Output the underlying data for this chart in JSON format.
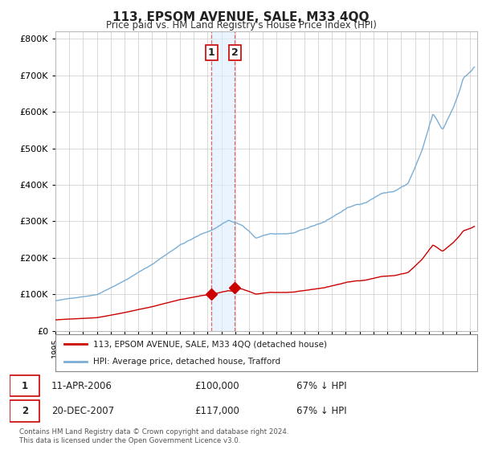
{
  "title": "113, EPSOM AVENUE, SALE, M33 4QQ",
  "subtitle": "Price paid vs. HM Land Registry's House Price Index (HPI)",
  "sale1_year_dec": 2006.28,
  "sale1_price": 100000,
  "sale2_year_dec": 2007.97,
  "sale2_price": 117000,
  "sale_color": "#cc0000",
  "hpi_color": "#7aaed6",
  "shade_color": "#ddeeff",
  "shade_alpha": 0.6,
  "dashed_color": "#dd6666",
  "ylim": [
    0,
    820000
  ],
  "xlim_min": 1995.0,
  "xlim_max": 2025.5,
  "yticks": [
    0,
    100000,
    200000,
    300000,
    400000,
    500000,
    600000,
    700000,
    800000
  ],
  "legend1_label": "113, EPSOM AVENUE, SALE, M33 4QQ (detached house)",
  "legend2_label": "HPI: Average price, detached house, Trafford",
  "table_rows": [
    {
      "num": "1",
      "date": "11-APR-2006",
      "price": "£100,000",
      "pct": "67% ↓ HPI"
    },
    {
      "num": "2",
      "date": "20-DEC-2007",
      "price": "£117,000",
      "pct": "67% ↓ HPI"
    }
  ],
  "footer": "Contains HM Land Registry data © Crown copyright and database right 2024.\nThis data is licensed under the Open Government Licence v3.0.",
  "bg_color": "#ffffff",
  "grid_color": "#cccccc"
}
